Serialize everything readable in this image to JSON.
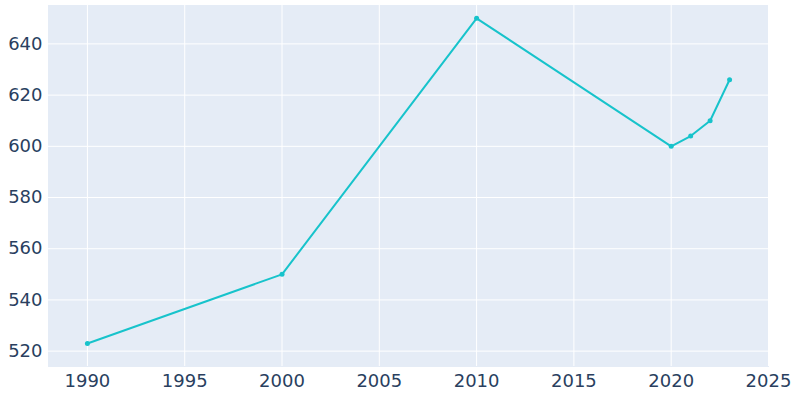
{
  "chart_data": {
    "type": "line",
    "x": [
      1990,
      2000,
      2010,
      2020,
      2021,
      2022,
      2023
    ],
    "values": [
      523,
      550,
      650,
      600,
      604,
      610,
      626
    ],
    "color": "#17c3cb",
    "marker": "circle",
    "line_style": "solid",
    "xlim": [
      1988,
      2025
    ],
    "xticks": [
      1990,
      1995,
      2000,
      2005,
      2010,
      2015,
      2020,
      2025
    ],
    "ylim": [
      514,
      655
    ],
    "yticks": [
      520,
      540,
      560,
      580,
      600,
      620,
      640
    ],
    "grid": true
  }
}
